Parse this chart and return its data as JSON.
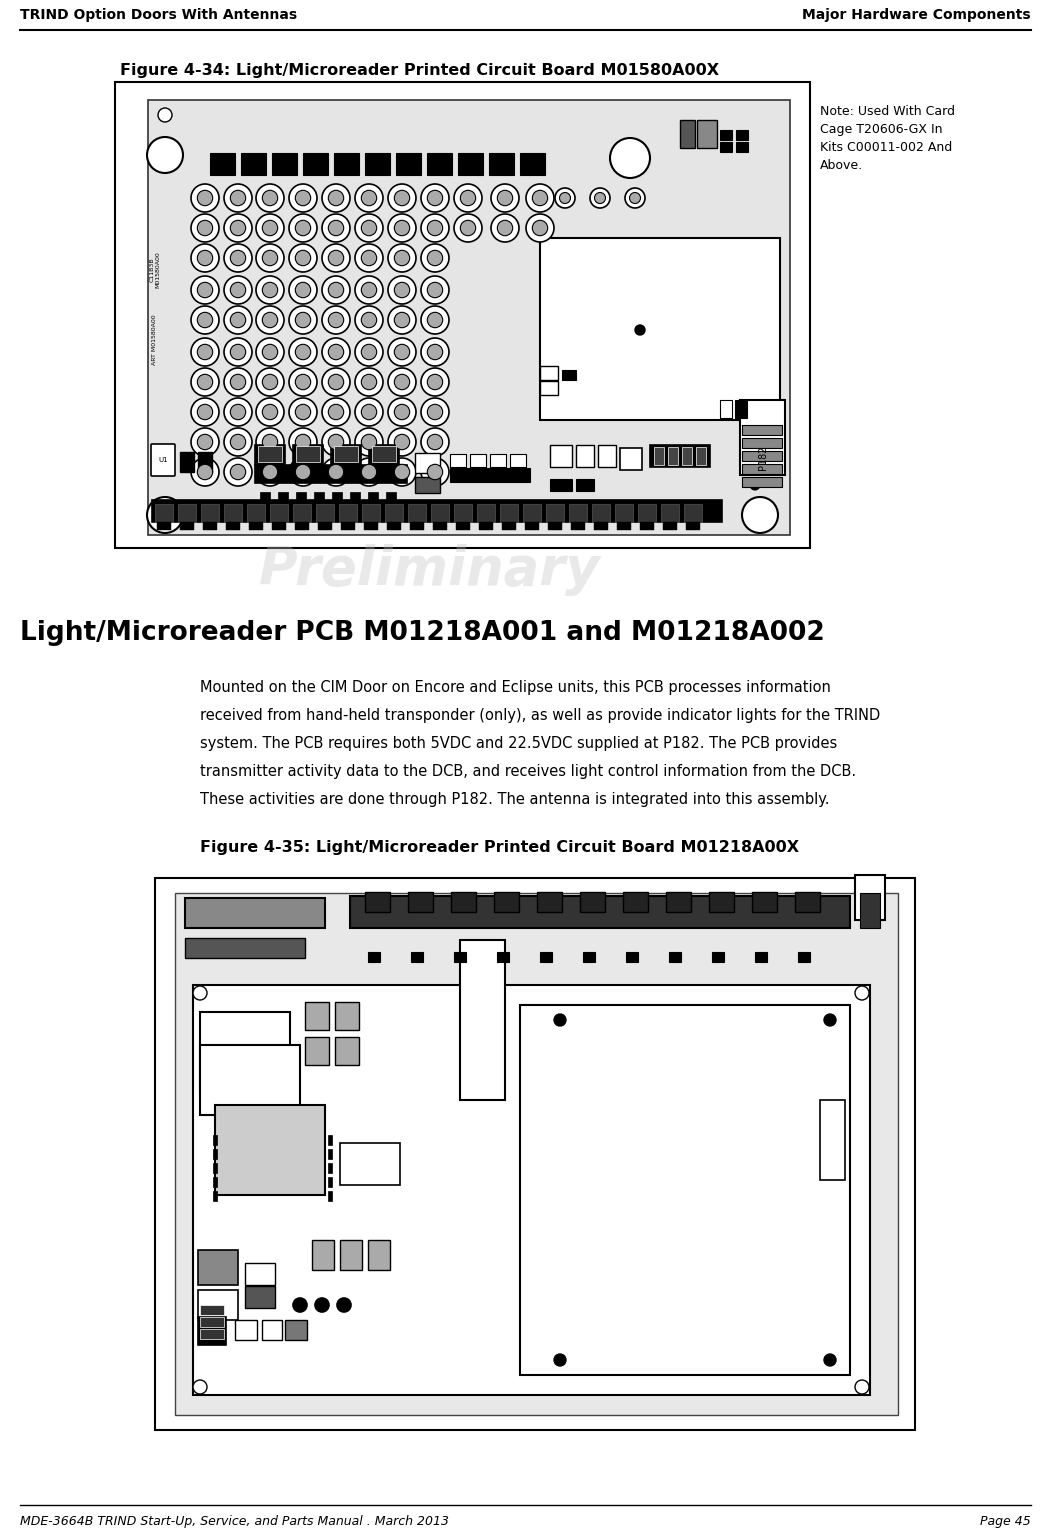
{
  "header_left": "TRIND Option Doors With Antennas",
  "header_right": "Major Hardware Components",
  "footer_left": "MDE-3664B TRIND Start-Up, Service, and Parts Manual . March 2013",
  "footer_right": "Page 45",
  "fig1_title": "Figure 4-34: Light/Microreader Printed Circuit Board M01580A00X",
  "fig1_note": "Note: Used With Card\nCage T20606-GX In\nKits C00011-002 And\nAbove.",
  "section_title": "Light/Microreader PCB M01218A001 and M01218A002",
  "section_body": "Mounted on the CIM Door on Encore and Eclipse units, this PCB processes information\nreceived from hand-held transponder (only), as well as provide indicator lights for the TRIND\nsystem. The PCB requires both 5VDC and 22.5VDC supplied at P182. The PCB provides\ntransmitter activity data to the DCB, and receives light control information from the DCB.\nThese activities are done through P182. The antenna is integrated into this assembly.",
  "fig2_title": "Figure 4-35: Light/Microreader Printed Circuit Board M01218A00X",
  "bg_color": "#ffffff",
  "prelim_color": "#c0c0c0"
}
